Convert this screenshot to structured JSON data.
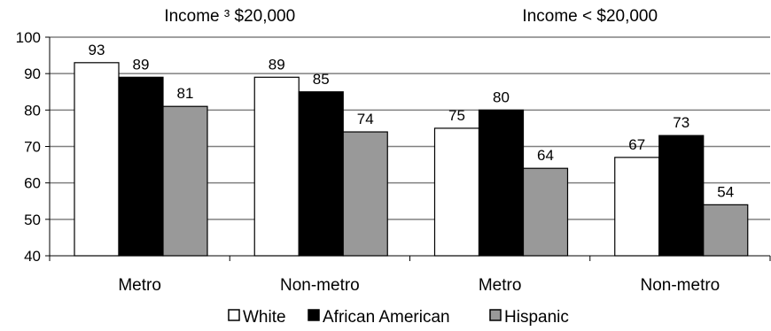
{
  "chart_data": {
    "type": "bar",
    "group_labels": [
      "Income ³ $20,000",
      "Income < $20,000"
    ],
    "categories": [
      "Metro",
      "Non-metro",
      "Metro",
      "Non-metro"
    ],
    "series": [
      {
        "name": "White",
        "values": [
          93,
          89,
          75,
          67
        ],
        "color": "#ffffff"
      },
      {
        "name": "African American",
        "values": [
          89,
          85,
          80,
          73
        ],
        "color": "#000000"
      },
      {
        "name": "Hispanic",
        "values": [
          81,
          74,
          64,
          54
        ],
        "color": "#999999"
      }
    ],
    "ylim": [
      40,
      100
    ],
    "yticks": [
      40,
      50,
      60,
      70,
      80,
      90,
      100
    ],
    "grid": true,
    "legend_position": "bottom"
  }
}
